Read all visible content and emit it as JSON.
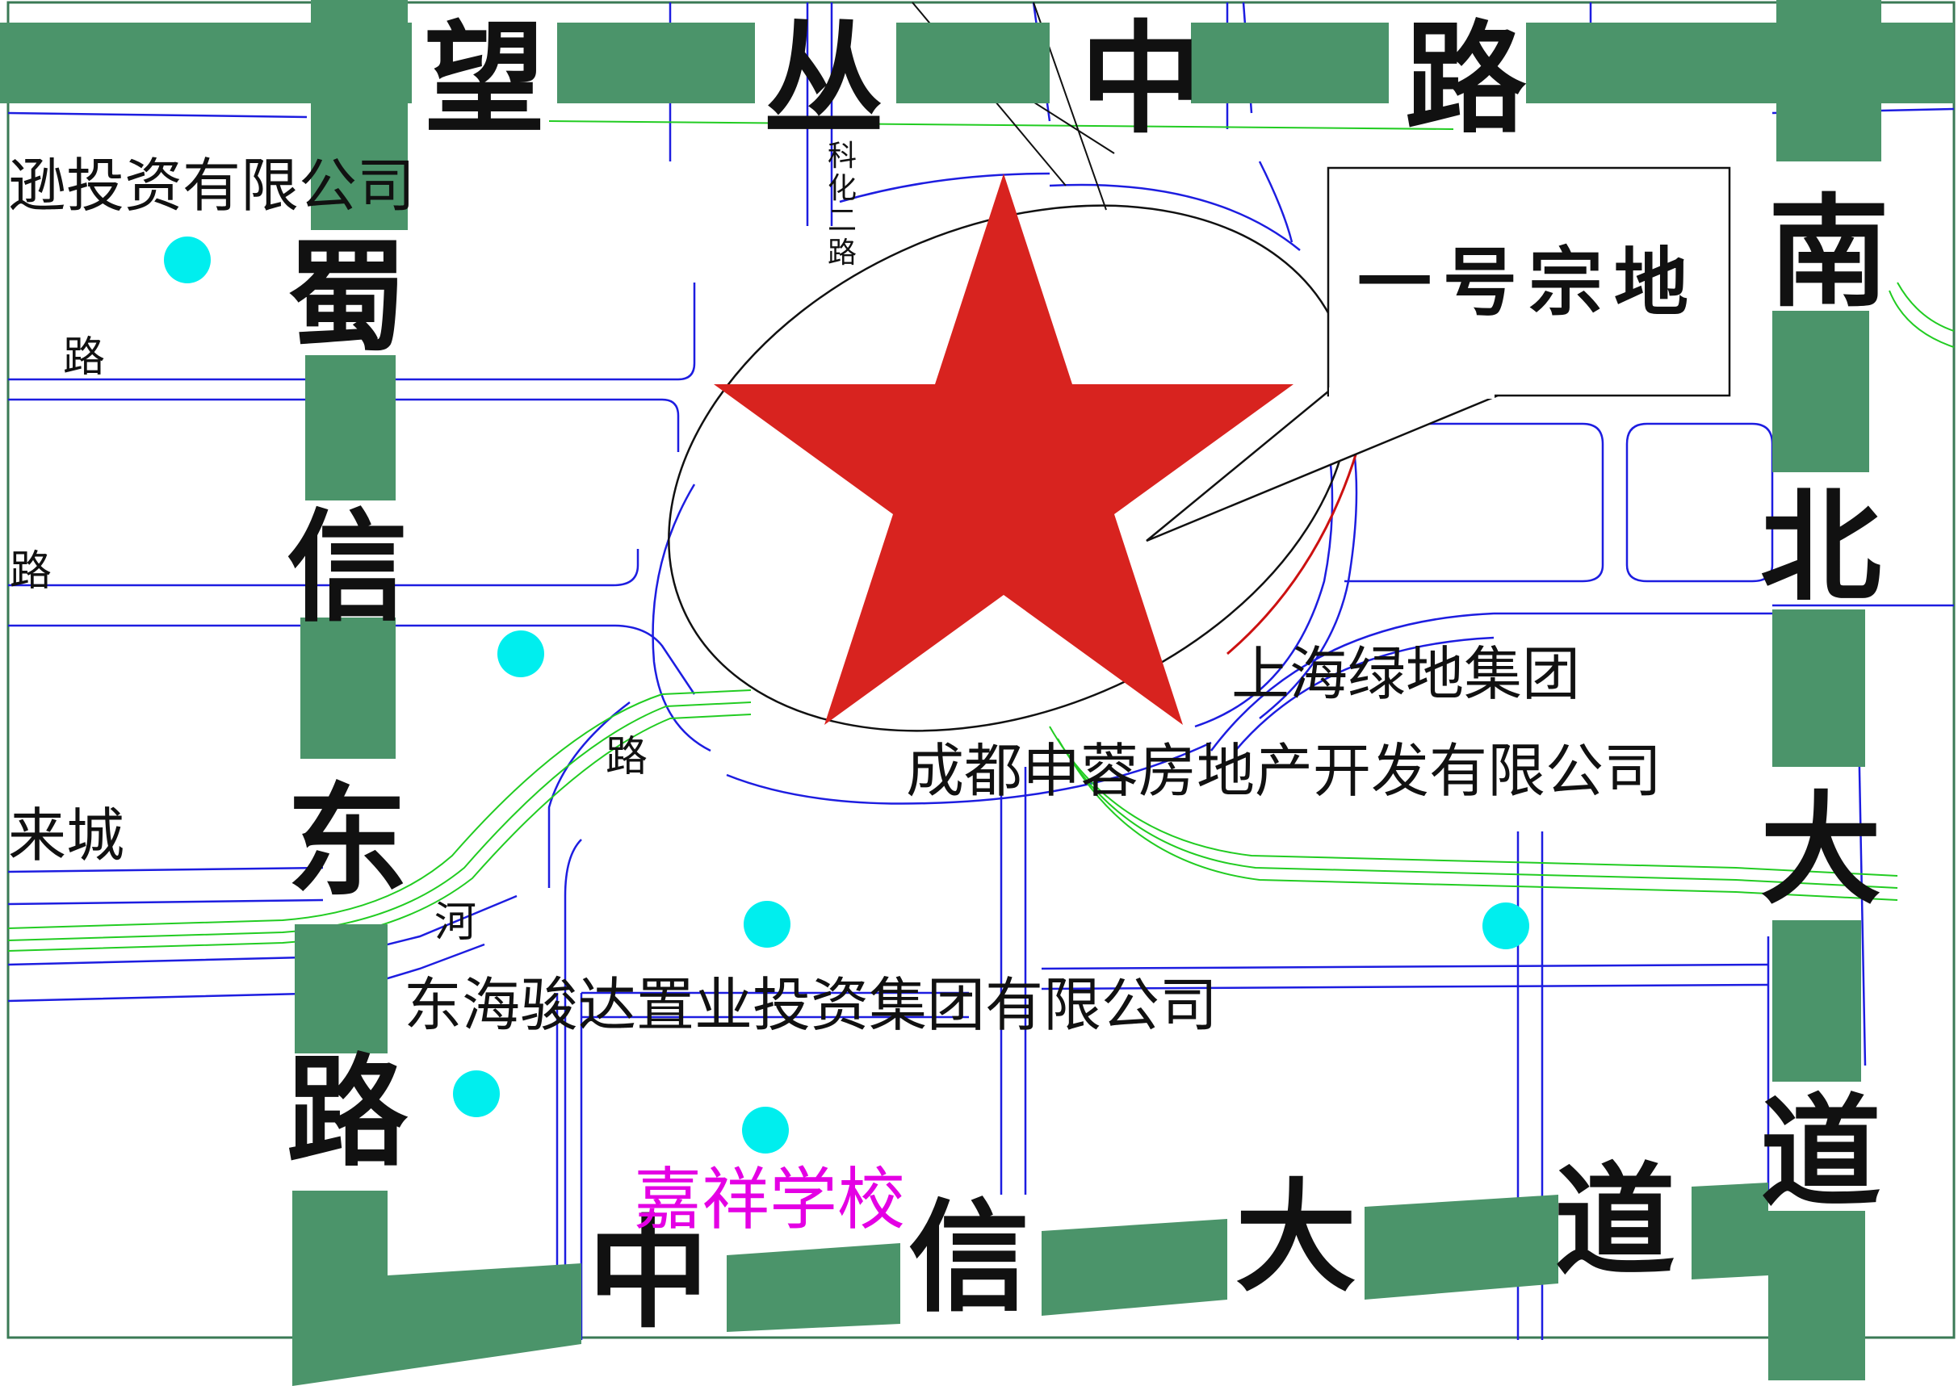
{
  "colors": {
    "road_band": "#4b946a",
    "road_line": "#1d1de0",
    "river_line": "#22cc22",
    "star": "#d8231f",
    "dot": "#00eeee",
    "school": "#e400e4",
    "text": "#111111"
  },
  "streets": {
    "top": [
      "望",
      "丛",
      "中",
      "路"
    ],
    "left": [
      "蜀",
      "信",
      "东",
      "路"
    ],
    "right": [
      "南",
      "北",
      "大",
      "道"
    ],
    "bottom": [
      "中",
      "信",
      "大",
      "道"
    ]
  },
  "callout": {
    "label": "一号宗地"
  },
  "marker": {
    "icon": "star-marker-icon"
  },
  "companies": {
    "top_left": "逊投资有限公司",
    "greenland": "上海绿地集团",
    "shenrong": "成都申蓉房地产开发有限公司",
    "donghai": "东海骏达置业投资集团有限公司"
  },
  "labels": {
    "lai_cheng": "来城",
    "lu_1": "路",
    "lu_2": "路",
    "lu_3": "路",
    "he": "河",
    "ke_hua_er_lu": [
      "科",
      "化",
      "二",
      "路"
    ]
  },
  "school": {
    "name": "嘉祥学校"
  },
  "poi_icon": "poi-dot-icon"
}
